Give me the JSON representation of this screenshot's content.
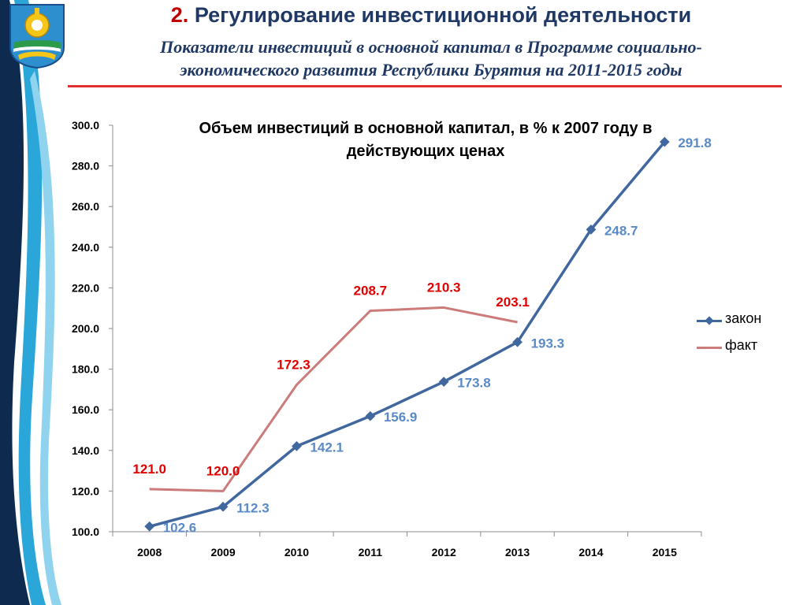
{
  "header": {
    "title_num": "2.",
    "title_text": "Регулирование инвестиционной деятельности",
    "subtitle_line1": "Показатели инвестиций в основной капитал в Программе социально-",
    "subtitle_line2": "экономического развития Республики Бурятия на 2011-2015 годы"
  },
  "colors": {
    "title": "#1f3864",
    "accent_red": "#c00000",
    "divider": "#e03030",
    "series_zakon": "#41689e",
    "series_zakon_labels": "#5a8ac6",
    "series_fakt": "#cc7b7b",
    "series_fakt_labels": "#e00000"
  },
  "icons": [
    "emblem-icon"
  ],
  "chart_data": {
    "type": "line",
    "title_line1": "Объем инвестиций в основной капитал, в % к 2007 году в",
    "title_line2": "действующих ценах",
    "categories": [
      "2008",
      "2009",
      "2010",
      "2011",
      "2012",
      "2013",
      "2014",
      "2015"
    ],
    "ylim": [
      100,
      300
    ],
    "ytick_step": 20,
    "ytick_labels": [
      "100.0",
      "120.0",
      "140.0",
      "160.0",
      "180.0",
      "200.0",
      "220.0",
      "240.0",
      "260.0",
      "280.0",
      "300.0"
    ],
    "grid": false,
    "legend_position": "right",
    "series": [
      {
        "name": "закон",
        "marker": "diamond",
        "values": [
          102.6,
          112.3,
          142.1,
          156.9,
          173.8,
          193.3,
          248.7,
          291.8
        ],
        "labels": [
          "102.6",
          "112.3",
          "142.1",
          "156.9",
          "173.8",
          "193.3",
          "248.7",
          "291.8"
        ]
      },
      {
        "name": "факт",
        "marker": "none",
        "values": [
          121.0,
          120.0,
          172.3,
          208.7,
          210.3,
          203.1,
          null,
          null
        ],
        "labels": [
          "121.0",
          "120.0",
          "172.3",
          "208.7",
          "210.3",
          "203.1",
          null,
          null
        ]
      }
    ]
  }
}
